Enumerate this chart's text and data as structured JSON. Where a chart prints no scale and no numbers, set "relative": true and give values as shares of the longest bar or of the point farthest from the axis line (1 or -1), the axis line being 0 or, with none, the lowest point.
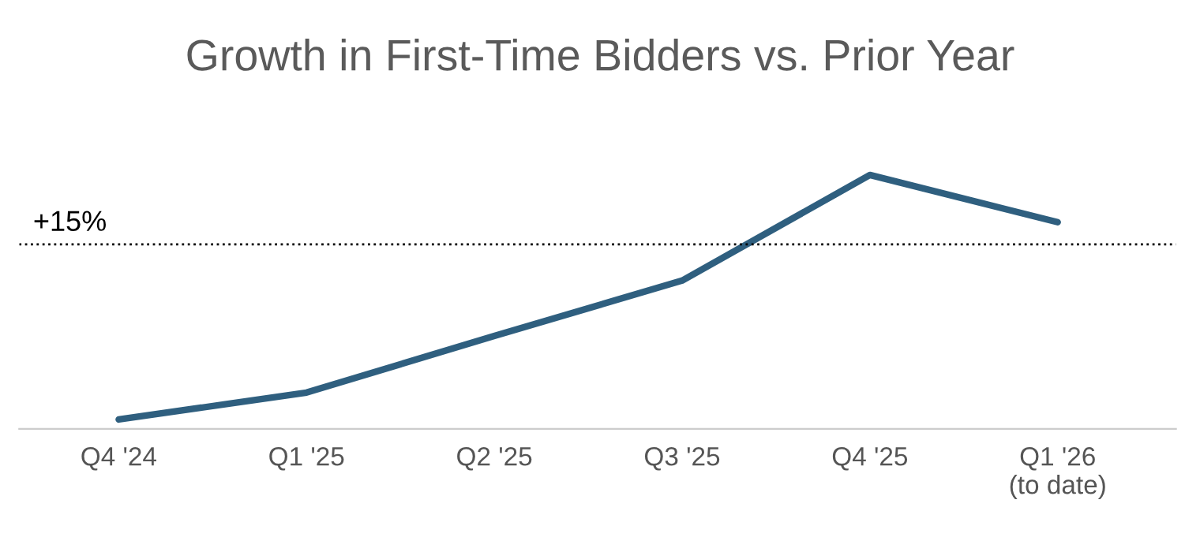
{
  "chart_data": {
    "type": "line",
    "title": "Growth in First-Time Bidders vs. Prior Year",
    "relative": true,
    "categories": [
      "Q4 '24",
      "Q1 '25",
      "Q2 '25",
      "Q3 '25",
      "Q4 '25",
      "Q1 '26\n(to date)"
    ],
    "series": [
      {
        "color": "#2f5f7f",
        "values": [
          0.037,
          0.143,
          0.366,
          0.584,
          1,
          0.814
        ]
      }
    ],
    "ref_lines": [
      {
        "axis": "y",
        "value": 0.727,
        "color": "#000000",
        "line_style": "dotted"
      }
    ],
    "annotations": [
      {
        "text": "+15%",
        "y": 0.727
      }
    ],
    "grid": false,
    "legend": false,
    "marker": "none",
    "line_style": "solid"
  }
}
